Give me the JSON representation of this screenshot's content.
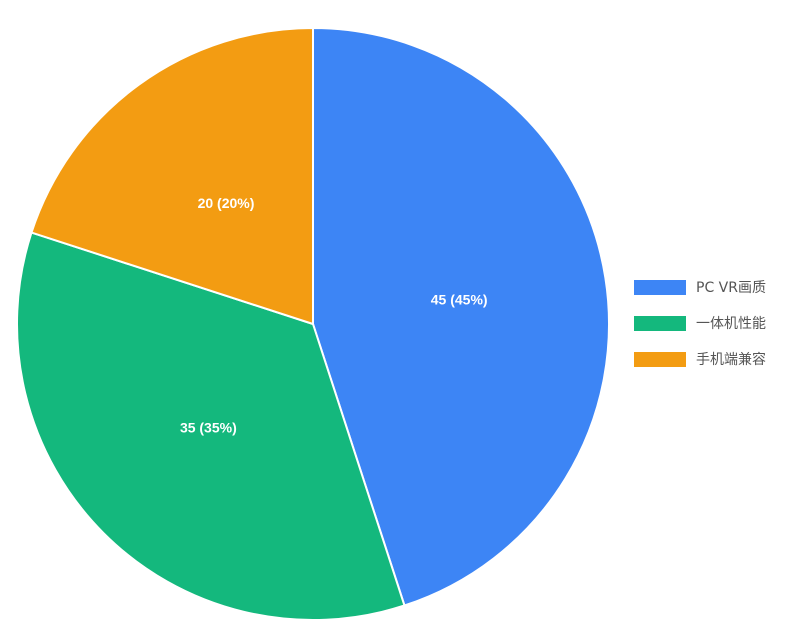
{
  "chart_data": {
    "type": "pie",
    "title": "",
    "categories": [
      "PC VR画质",
      "一体机性能",
      "手机端兼容"
    ],
    "values": [
      45,
      35,
      20
    ],
    "percent_labels": [
      "45 (45%)",
      "35 (35%)",
      "20 (20%)"
    ],
    "colors": [
      "#3d85f5",
      "#14b87d",
      "#f39c12"
    ],
    "start_angle": "12 o'clock",
    "direction": "clockwise",
    "legend": "right",
    "slice_border": "#ffffff"
  }
}
